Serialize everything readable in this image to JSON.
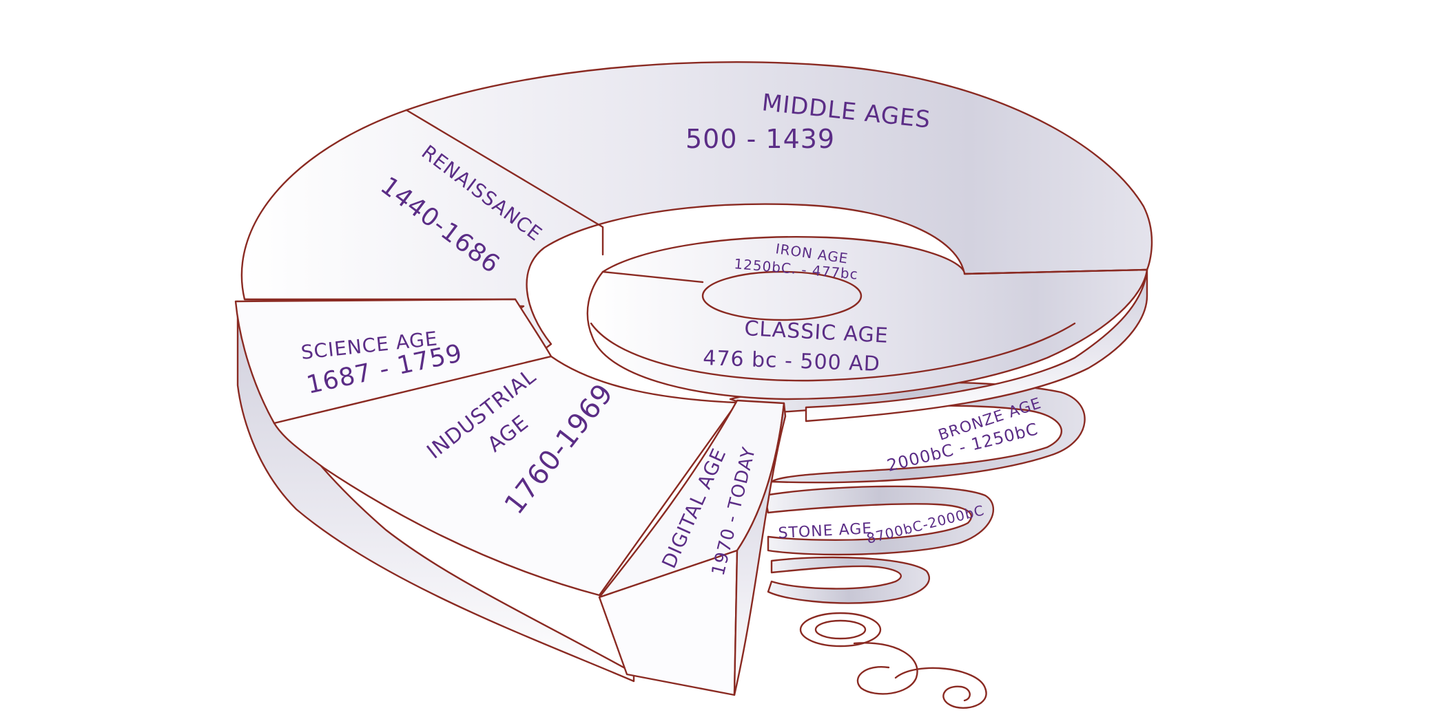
{
  "diagram": {
    "segments": {
      "middle_ages": {
        "name": "MIDDLE AGES",
        "dates": "500 - 1439"
      },
      "renaissance": {
        "name": "RENAISSANCE",
        "dates": "1440-1686"
      },
      "science_age": {
        "name": "SCIENCE AGE",
        "dates": "1687 - 1759"
      },
      "industrial_age": {
        "name_line1": "INDUSTRIAL",
        "name_line2": "AGE",
        "dates": "1760-1969"
      },
      "digital_age": {
        "name": "DIGITAL AGE",
        "dates": "1970 - TODAY"
      },
      "iron_age": {
        "name": "IRON AGE",
        "dates": "1250bC. - 477bc"
      },
      "classic_age": {
        "name": "CLASSIC AGE",
        "dates": "476 bc  - 500 AD"
      },
      "bronze_age": {
        "name": "BRONZE AGE",
        "dates": "2000bC - 1250bC"
      },
      "stone_age": {
        "name": "STONE AGE",
        "dates": "8700bC-2000bC"
      }
    }
  },
  "colors": {
    "outline": "#8a2a22",
    "text": "#5b2d86",
    "fill_light": "#f7f7fa",
    "fill_shade": "#c9c8d6"
  }
}
